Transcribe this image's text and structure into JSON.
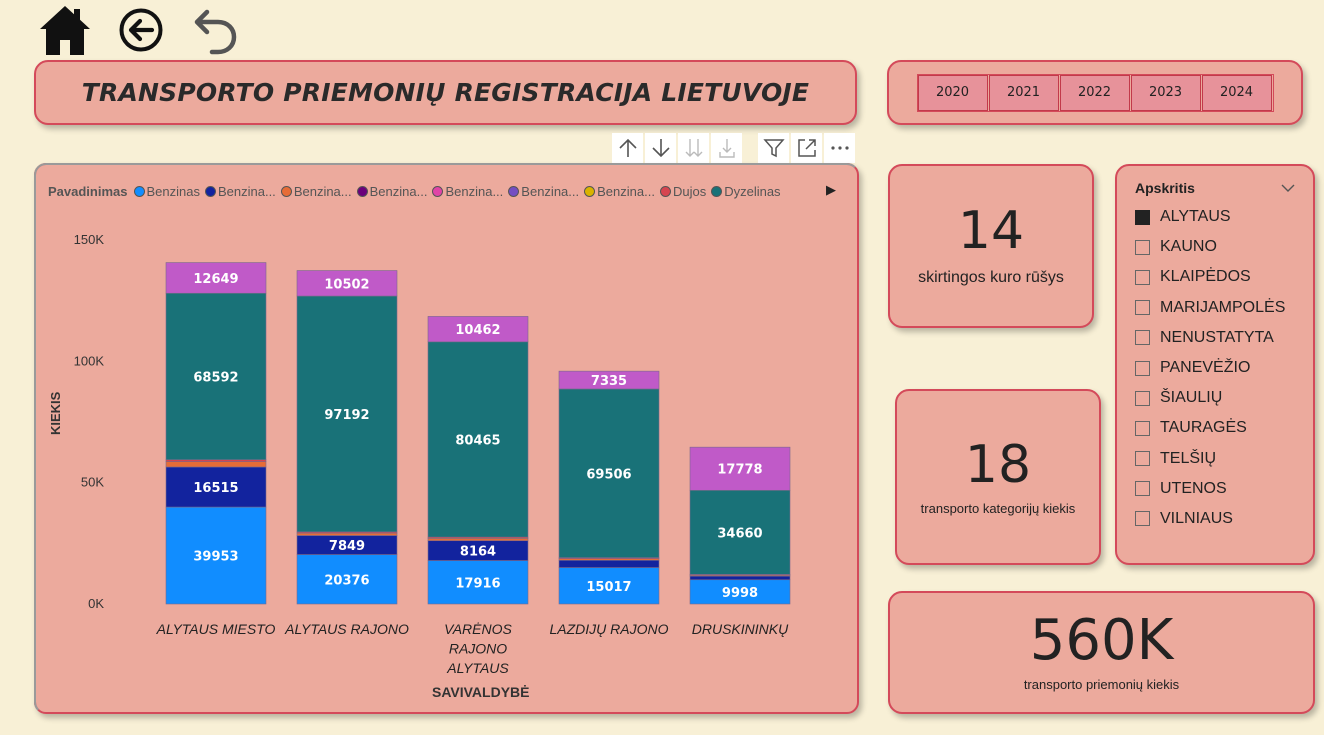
{
  "nav": {
    "home_icon": "home-icon",
    "back_icon": "back-arrow-circle-icon",
    "undo_icon": "undo-icon"
  },
  "title": "TRANSPORTO PRIEMONIŲ REGISTRACIJA LIETUVOJE",
  "years": [
    "2020",
    "2021",
    "2022",
    "2023",
    "2024"
  ],
  "toolbar": [
    "arrow-up-icon",
    "arrow-down-icon",
    "double-arrow-down-icon",
    "expand-hierarchy-icon",
    "filter-icon",
    "focus-mode-icon",
    "more-options-icon"
  ],
  "legend": {
    "title": "Pavadinimas",
    "items": [
      {
        "label": "Benzinas",
        "color": "#118dff"
      },
      {
        "label": "Benzina...",
        "color": "#12239e"
      },
      {
        "label": "Benzina...",
        "color": "#e66c37"
      },
      {
        "label": "Benzina...",
        "color": "#6b007b"
      },
      {
        "label": "Benzina...",
        "color": "#e044a7"
      },
      {
        "label": "Benzina...",
        "color": "#744ec2"
      },
      {
        "label": "Benzina...",
        "color": "#d9b300"
      },
      {
        "label": "Dujos",
        "color": "#d64550"
      },
      {
        "label": "Dyzelinas",
        "color": "#197278"
      }
    ]
  },
  "chart_data": {
    "type": "bar",
    "stacked": true,
    "xlabel": "SAVIVALDYBĖ",
    "ylabel": "KIEKIS",
    "ylim": [
      0,
      150000
    ],
    "yticks": [
      "0K",
      "50K",
      "100K",
      "150K"
    ],
    "categories": [
      "ALYTAUS MIESTO",
      "ALYTAUS RAJONO",
      "VARĖNOS RAJONO ALYTAUS",
      "LAZDIJŲ RAJONO",
      "DRUSKININKŲ"
    ],
    "category_lines": [
      [
        "ALYTAUS MIESTO"
      ],
      [
        "ALYTAUS RAJONO"
      ],
      [
        "VARĖNOS",
        "RAJONO",
        "ALYTAUS"
      ],
      [
        "LAZDIJŲ RAJONO"
      ],
      [
        "DRUSKININKŲ"
      ]
    ],
    "series": [
      {
        "name": "Benzinas",
        "color": "#118dff",
        "values": [
          39953,
          20376,
          17916,
          15017,
          9998
        ],
        "labels": true
      },
      {
        "name": "Benzina...",
        "color": "#12239e",
        "values": [
          16515,
          7849,
          8164,
          3000,
          1500
        ],
        "labels": [
          true,
          true,
          true,
          false,
          false
        ]
      },
      {
        "name": "Benzina...",
        "color": "#e66c37",
        "values": [
          2200,
          1000,
          1000,
          700,
          400
        ],
        "labels": false
      },
      {
        "name": "Dujos",
        "color": "#d64550",
        "values": [
          800,
          500,
          500,
          400,
          300
        ],
        "labels": false
      },
      {
        "name": "Dyzelinas",
        "color": "#197278",
        "values": [
          68592,
          97192,
          80465,
          69506,
          34660
        ],
        "labels": true
      },
      {
        "name": "Benzina...",
        "color": "#c05ac8",
        "values": [
          12649,
          10502,
          10462,
          7335,
          17778
        ],
        "labels": true
      }
    ]
  },
  "kpis": {
    "fuel_types": {
      "value": "14",
      "label": "skirtingos kuro rūšys"
    },
    "categories": {
      "value": "18",
      "label": "transporto kategorijų kiekis"
    },
    "vehicles": {
      "value": "560K",
      "label": "transporto priemonių kiekis"
    }
  },
  "slicer": {
    "title": "Apskritis",
    "items": [
      {
        "label": "ALYTAUS",
        "checked": true
      },
      {
        "label": "KAUNO",
        "checked": false
      },
      {
        "label": "KLAIPĖDOS",
        "checked": false
      },
      {
        "label": "MARIJAMPOLĖS",
        "checked": false
      },
      {
        "label": "NENUSTATYTA",
        "checked": false
      },
      {
        "label": "PANEVĖŽIO",
        "checked": false
      },
      {
        "label": "ŠIAULIŲ",
        "checked": false
      },
      {
        "label": "TAURAGĖS",
        "checked": false
      },
      {
        "label": "TELŠIŲ",
        "checked": false
      },
      {
        "label": "UTENOS",
        "checked": false
      },
      {
        "label": "VILNIAUS",
        "checked": false
      }
    ]
  }
}
